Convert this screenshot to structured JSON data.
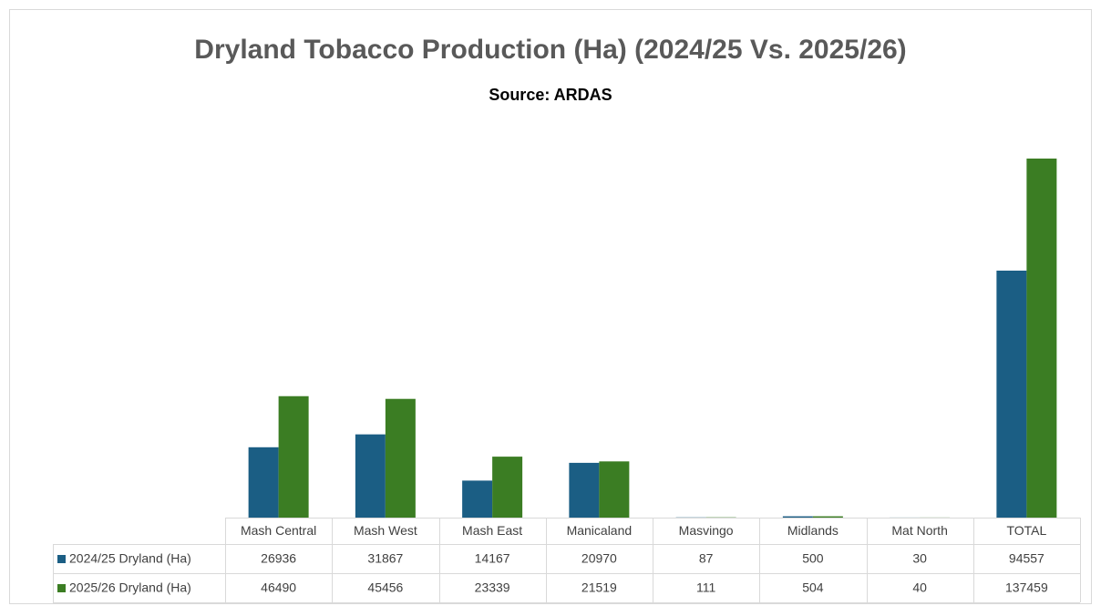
{
  "chart_data": {
    "type": "bar",
    "title": "Dryland Tobacco Production (Ha) (2024/25 Vs. 2025/26)",
    "subtitle": "Source: ARDAS",
    "categories": [
      "Mash Central",
      "Mash West",
      "Mash East",
      "Manicaland",
      "Masvingo",
      "Midlands",
      "Mat North",
      "TOTAL"
    ],
    "series": [
      {
        "name": "2024/25 Dryland (Ha)",
        "color": "#1b5e84",
        "values": [
          26936,
          31867,
          14167,
          20970,
          87,
          500,
          30,
          94557
        ]
      },
      {
        "name": "2025/26 Dryland (Ha)",
        "color": "#3b7d23",
        "values": [
          46490,
          45456,
          23339,
          21519,
          111,
          504,
          40,
          137459
        ]
      }
    ]
  }
}
